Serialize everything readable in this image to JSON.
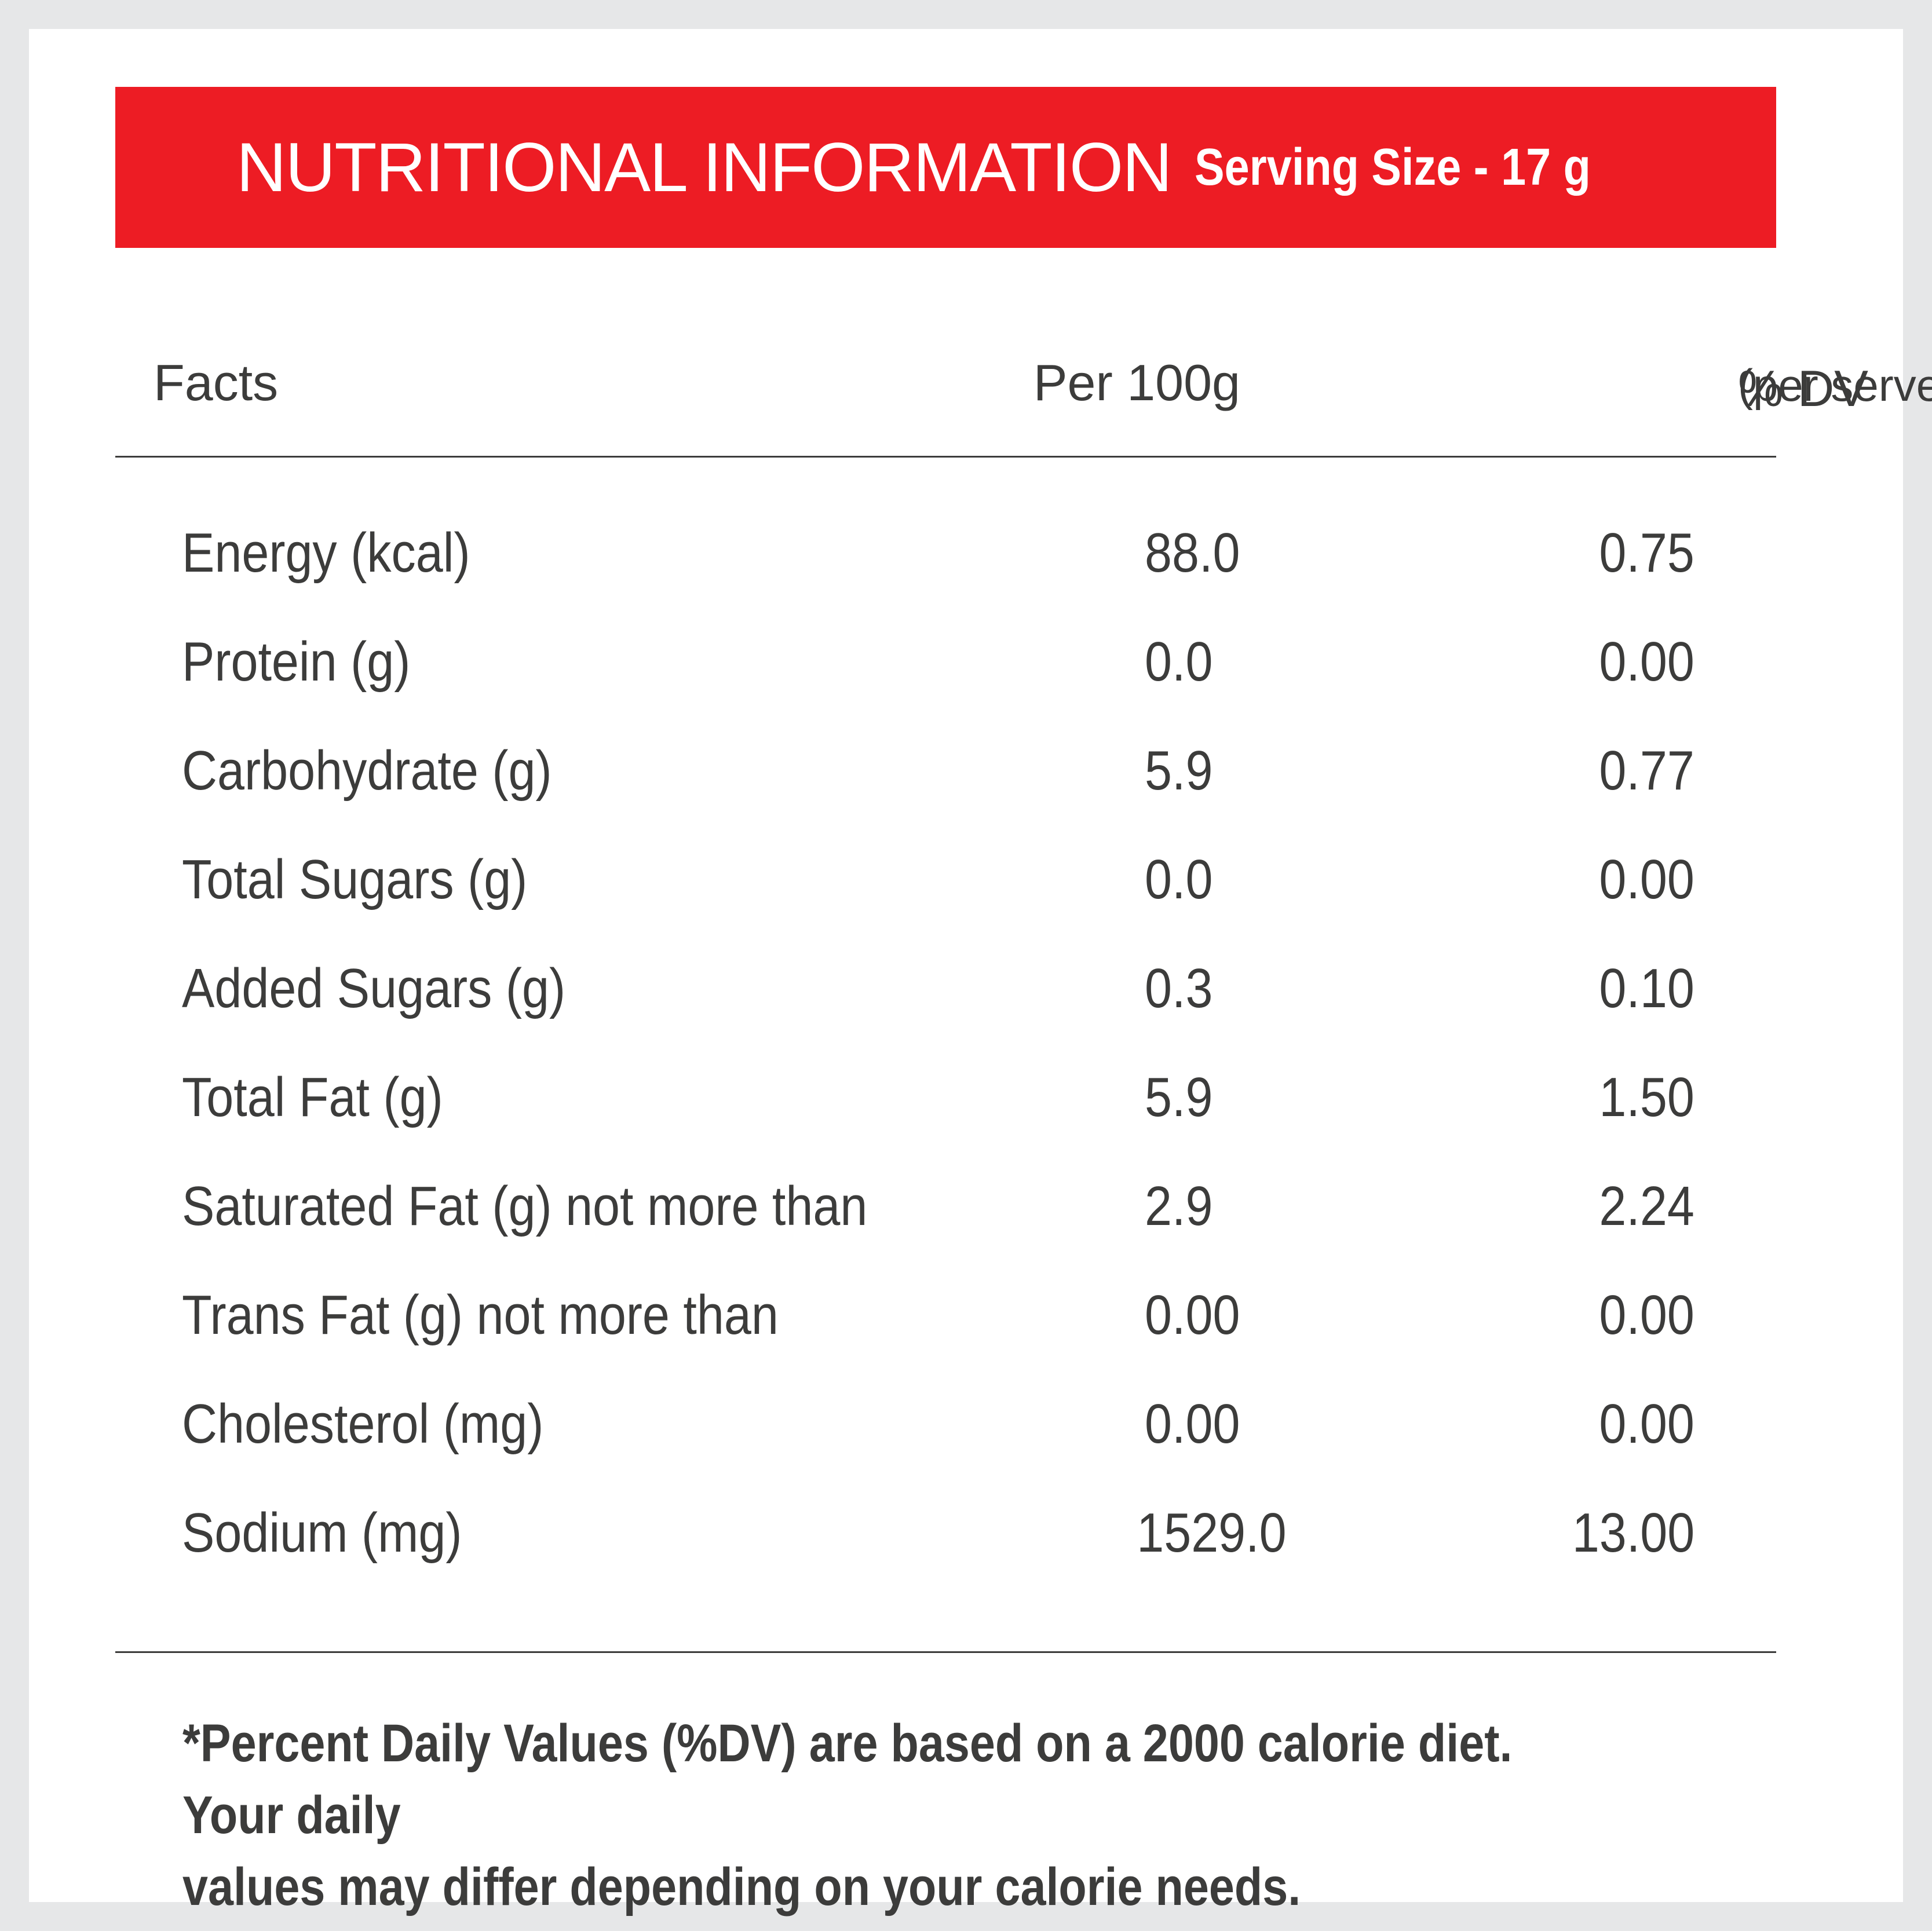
{
  "banner": {
    "title": "NUTRITIONAL INFORMATION",
    "serving": "Serving Size - 17 g"
  },
  "colors": {
    "banner": "#ed1c24",
    "text": "#3c3c3b",
    "frame": "#e6e7e8"
  },
  "table": {
    "headers": {
      "facts": "Facts",
      "per100": "Per 100g",
      "dv": "% DV",
      "dv_note": "(per serve)*"
    },
    "rows": [
      {
        "label": "Energy (kcal)",
        "per100": "88.0",
        "dv": "0.75"
      },
      {
        "label": "Protein (g)",
        "per100": "0.0",
        "dv": "0.00"
      },
      {
        "label": "Carbohydrate (g)",
        "per100": "5.9",
        "dv": "0.77"
      },
      {
        "label": "Total Sugars (g)",
        "per100": "0.0",
        "dv": "0.00"
      },
      {
        "label": "Added Sugars (g)",
        "per100": "0.3",
        "dv": "0.10"
      },
      {
        "label": "Total Fat (g)",
        "per100": "5.9",
        "dv": "1.50"
      },
      {
        "label": "Saturated Fat (g) not more than",
        "per100": "2.9",
        "dv": "2.24"
      },
      {
        "label": "Trans Fat (g) not more than",
        "per100": "0.00",
        "dv": "0.00"
      },
      {
        "label": "Cholesterol (mg)",
        "per100": "0.00",
        "dv": "0.00"
      },
      {
        "label": "Sodium (mg)",
        "per100": "1529.0",
        "dv": "13.00"
      }
    ]
  },
  "footnote": {
    "line1": "*Percent Daily Values (%DV) are based on a 2000 calorie diet. Your daily",
    "line2": "values may differ depending on your calorie needs."
  }
}
